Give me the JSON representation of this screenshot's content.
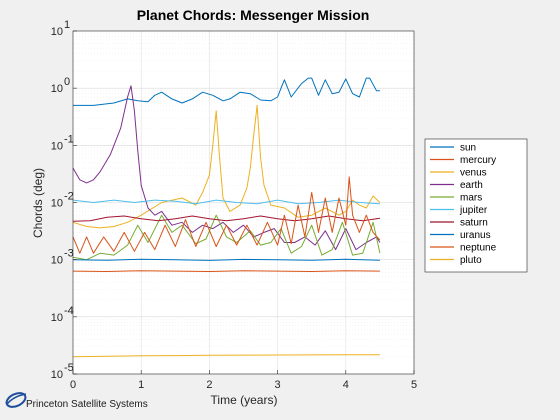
{
  "chart_data": {
    "type": "line",
    "title": "Planet Chords: Messenger Mission",
    "xlabel": "Time (years)",
    "ylabel": "Chords (deg)",
    "xlim": [
      0,
      5
    ],
    "ylim": [
      1e-05,
      10
    ],
    "yscale": "log",
    "grid": true,
    "legend_position": "right",
    "x_ticks": [
      0,
      1,
      2,
      3,
      4,
      5
    ],
    "y_ticks": [
      {
        "value": 1e-05,
        "base": "10",
        "exp": "-5"
      },
      {
        "value": 0.0001,
        "base": "10",
        "exp": "-4"
      },
      {
        "value": 0.001,
        "base": "10",
        "exp": "-3"
      },
      {
        "value": 0.01,
        "base": "10",
        "exp": "-2"
      },
      {
        "value": 0.1,
        "base": "10",
        "exp": "-1"
      },
      {
        "value": 1,
        "base": "10",
        "exp": "0"
      },
      {
        "value": 10,
        "base": "10",
        "exp": "1"
      }
    ],
    "series": [
      {
        "name": "sun",
        "color": "#0072bd",
        "x": [
          0,
          0.3,
          0.6,
          0.8,
          0.95,
          1.1,
          1.2,
          1.3,
          1.45,
          1.6,
          1.75,
          1.9,
          2.05,
          2.2,
          2.3,
          2.45,
          2.6,
          2.75,
          2.9,
          3.0,
          3.05,
          3.1,
          3.2,
          3.35,
          3.45,
          3.5,
          3.6,
          3.7,
          3.8,
          3.9,
          4.0,
          4.1,
          4.2,
          4.3,
          4.35,
          4.45,
          4.5
        ],
        "values": [
          0.5,
          0.5,
          0.55,
          0.65,
          0.6,
          0.58,
          0.75,
          0.85,
          0.65,
          0.55,
          0.65,
          0.85,
          0.75,
          0.6,
          0.65,
          0.85,
          0.8,
          0.62,
          0.6,
          0.7,
          1.0,
          1.4,
          0.7,
          1.2,
          1.5,
          1.5,
          0.75,
          1.4,
          0.8,
          0.85,
          1.45,
          0.8,
          0.7,
          1.5,
          1.5,
          0.9,
          0.9
        ]
      },
      {
        "name": "mercury",
        "color": "#d95319",
        "x": [
          0,
          0.5,
          1.0,
          1.5,
          2.0,
          2.5,
          3.0,
          3.5,
          4.0,
          4.5
        ],
        "values": [
          0.00063,
          0.00062,
          0.00064,
          0.00063,
          0.00062,
          0.00064,
          0.00063,
          0.00062,
          0.00064,
          0.00063
        ]
      },
      {
        "name": "venus",
        "color": "#edb120",
        "x": [
          0,
          0.2,
          0.4,
          0.6,
          0.8,
          1.0,
          1.3,
          1.6,
          1.8,
          1.9,
          2.0,
          2.05,
          2.1,
          2.15,
          2.2,
          2.3,
          2.45,
          2.55,
          2.6,
          2.65,
          2.7,
          2.75,
          2.8,
          2.9,
          3.1,
          3.3,
          3.5,
          3.7,
          3.9,
          4.0,
          4.1,
          4.2,
          4.3,
          4.4,
          4.5
        ],
        "values": [
          0.0045,
          0.0038,
          0.0036,
          0.0038,
          0.0045,
          0.006,
          0.01,
          0.012,
          0.009,
          0.015,
          0.03,
          0.1,
          0.4,
          0.06,
          0.012,
          0.007,
          0.009,
          0.018,
          0.04,
          0.15,
          0.5,
          0.06,
          0.02,
          0.009,
          0.008,
          0.0055,
          0.006,
          0.008,
          0.006,
          0.007,
          0.011,
          0.009,
          0.008,
          0.013,
          0.01
        ]
      },
      {
        "name": "earth",
        "color": "#7e2f8e",
        "x": [
          0,
          0.1,
          0.2,
          0.3,
          0.4,
          0.55,
          0.7,
          0.8,
          0.85,
          0.9,
          0.95,
          1.0,
          1.1,
          1.2,
          1.3,
          1.45,
          1.6,
          1.75,
          1.9,
          2.05,
          2.2,
          2.35,
          2.5,
          2.65,
          2.8,
          2.95,
          3.1,
          3.25,
          3.4,
          3.55,
          3.7,
          3.85,
          4.0,
          4.15,
          4.3,
          4.45,
          4.5
        ],
        "values": [
          0.04,
          0.025,
          0.022,
          0.025,
          0.035,
          0.07,
          0.2,
          0.7,
          1.1,
          0.4,
          0.08,
          0.02,
          0.008,
          0.006,
          0.007,
          0.004,
          0.0045,
          0.003,
          0.004,
          0.0035,
          0.0045,
          0.003,
          0.004,
          0.0025,
          0.003,
          0.0035,
          0.002,
          0.002,
          0.0025,
          0.0018,
          0.0032,
          0.0015,
          0.0035,
          0.0015,
          0.002,
          0.0025,
          0.002
        ]
      },
      {
        "name": "mars",
        "color": "#77ac30",
        "x": [
          0,
          0.2,
          0.4,
          0.6,
          0.8,
          0.95,
          1.1,
          1.3,
          1.45,
          1.6,
          1.8,
          1.95,
          2.1,
          2.25,
          2.4,
          2.6,
          2.75,
          2.9,
          3.05,
          3.2,
          3.35,
          3.5,
          3.65,
          3.8,
          3.95,
          4.1,
          4.25,
          4.4,
          4.5
        ],
        "values": [
          0.0011,
          0.001,
          0.0013,
          0.0012,
          0.0018,
          0.004,
          0.002,
          0.006,
          0.003,
          0.004,
          0.0019,
          0.0023,
          0.006,
          0.0025,
          0.002,
          0.0032,
          0.0018,
          0.002,
          0.0035,
          0.0013,
          0.0017,
          0.004,
          0.0012,
          0.0015,
          0.0045,
          0.0012,
          0.0013,
          0.0045,
          0.0013
        ]
      },
      {
        "name": "jupiter",
        "color": "#4dbeee",
        "x": [
          0,
          0.3,
          0.6,
          0.9,
          1.2,
          1.5,
          1.8,
          2.1,
          2.4,
          2.7,
          3.0,
          3.3,
          3.6,
          3.9,
          4.2,
          4.5
        ],
        "values": [
          0.011,
          0.01,
          0.011,
          0.01,
          0.011,
          0.0105,
          0.0095,
          0.011,
          0.01,
          0.0095,
          0.011,
          0.0095,
          0.01,
          0.011,
          0.01,
          0.0095
        ]
      },
      {
        "name": "saturn",
        "color": "#a2142f",
        "x": [
          0,
          0.25,
          0.5,
          0.75,
          1.0,
          1.25,
          1.5,
          1.75,
          2.0,
          2.25,
          2.5,
          2.75,
          3.0,
          3.25,
          3.5,
          3.75,
          4.0,
          4.25,
          4.5
        ],
        "values": [
          0.0047,
          0.0048,
          0.0055,
          0.0058,
          0.0052,
          0.0048,
          0.0052,
          0.0058,
          0.0052,
          0.0048,
          0.0052,
          0.0058,
          0.0052,
          0.0048,
          0.0052,
          0.0058,
          0.0052,
          0.0048,
          0.0053
        ]
      },
      {
        "name": "uranus",
        "color": "#0072bd",
        "x": [
          0,
          0.5,
          1.0,
          1.5,
          2.0,
          2.5,
          3.0,
          3.5,
          4.0,
          4.5
        ],
        "values": [
          0.001,
          0.00098,
          0.00102,
          0.001,
          0.00097,
          0.00101,
          0.001,
          0.00098,
          0.00102,
          0.00098
        ]
      },
      {
        "name": "neptune",
        "color": "#d95319",
        "x": [
          0,
          0.1,
          0.2,
          0.3,
          0.45,
          0.6,
          0.75,
          0.9,
          1.05,
          1.2,
          1.35,
          1.5,
          1.65,
          1.8,
          1.95,
          2.1,
          2.25,
          2.4,
          2.55,
          2.7,
          2.85,
          3.0,
          3.1,
          3.2,
          3.3,
          3.4,
          3.5,
          3.6,
          3.7,
          3.8,
          3.9,
          4.0,
          4.05,
          4.1,
          4.2,
          4.3,
          4.4,
          4.5
        ],
        "values": [
          0.0025,
          0.0013,
          0.0025,
          0.0013,
          0.0025,
          0.0014,
          0.003,
          0.0014,
          0.003,
          0.0015,
          0.004,
          0.0017,
          0.005,
          0.0017,
          0.0045,
          0.0017,
          0.004,
          0.0018,
          0.004,
          0.0018,
          0.0045,
          0.0018,
          0.006,
          0.0019,
          0.009,
          0.0025,
          0.015,
          0.003,
          0.012,
          0.003,
          0.012,
          0.004,
          0.028,
          0.006,
          0.003,
          0.006,
          0.003,
          0.0022
        ]
      },
      {
        "name": "pluto",
        "color": "#edb120",
        "x": [
          0,
          0.5,
          1.0,
          1.5,
          2.0,
          2.5,
          3.0,
          3.5,
          4.0,
          4.5
        ],
        "values": [
          2e-05,
          2.05e-05,
          2.08e-05,
          2.1e-05,
          2.12e-05,
          2.14e-05,
          2.15e-05,
          2.16e-05,
          2.17e-05,
          2.18e-05
        ]
      }
    ]
  },
  "footer": {
    "company": "Princeton Satellite Systems"
  }
}
